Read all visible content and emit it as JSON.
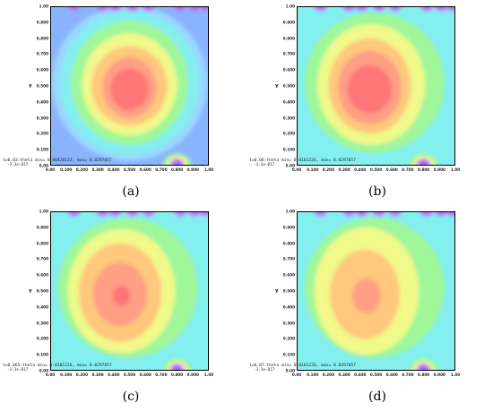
{
  "figure": {
    "y_axis_label": "Y",
    "y_ticks": [
      "1.00",
      "0.900",
      "0.800",
      "0.700",
      "0.600",
      "0.500",
      "0.400",
      "0.300",
      "0.200",
      "0.100",
      "0.00"
    ],
    "x_ticks": [
      "0.00",
      "0.100",
      "0.200",
      "0.300",
      "0.400",
      "0.500",
      "0.600",
      "0.700",
      "0.800",
      "0.900",
      "1.00"
    ],
    "origin_label": "-3.3e-017",
    "colors": {
      "outer": "#8ab3ff",
      "low": "#9ad7ff",
      "teal": "#84efef",
      "green": "#9ff79a",
      "yellow": "#f0f98a",
      "orange": "#ffc87d",
      "salmon": "#ff9f84",
      "core": "#ff7678",
      "magenta": "#d96aff",
      "purple": "#8765ff"
    }
  },
  "panels": [
    {
      "caption": "(a)",
      "info": "t=0.03:theta min= 0.00428133, max= 0.0297057",
      "variant": "a"
    },
    {
      "caption": "(b)",
      "info": "t=0.06:theta min= 0.0101226, max= 0.0297057",
      "variant": "b"
    },
    {
      "caption": "(c)",
      "info": "t=0.065:theta min= 0.0101226, max= 0.0297057",
      "variant": "c"
    },
    {
      "caption": "(d)",
      "info": "t=0.07:theta min= 0.0101226, max= 0.0297057",
      "variant": "d"
    }
  ]
}
